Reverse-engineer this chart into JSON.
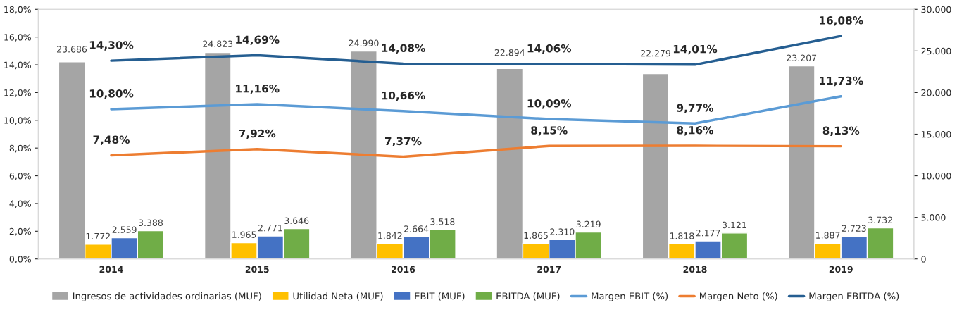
{
  "chart_data": {
    "type": "bar",
    "categories": [
      "2014",
      "2015",
      "2016",
      "2017",
      "2018",
      "2019"
    ],
    "series": [
      {
        "name": "Ingresos de actividades ordinarias (MUF)",
        "color": "#a5a5a5",
        "axis": "y2",
        "values": [
          23686,
          24823,
          24990,
          22894,
          22279,
          23207
        ],
        "value_labels": [
          "23.686",
          "24.823",
          "24.990",
          "22.894",
          "22.279",
          "23.207"
        ]
      },
      {
        "name": "Utilidad Neta (MUF)",
        "color": "#ffc000",
        "axis": "y2",
        "values": [
          1772,
          1965,
          1842,
          1865,
          1818,
          1887
        ],
        "value_labels": [
          "1.772",
          "1.965",
          "1.842",
          "1.865",
          "1.818",
          "1.887"
        ]
      },
      {
        "name": "EBIT (MUF)",
        "color": "#4472c4",
        "axis": "y2",
        "values": [
          2559,
          2771,
          2664,
          2310,
          2177,
          2723
        ],
        "value_labels": [
          "2.559",
          "2.771",
          "2.664",
          "2.310",
          "2.177",
          "2.723"
        ]
      },
      {
        "name": "EBITDA (MUF)",
        "color": "#70ad47",
        "axis": "y2",
        "values": [
          3388,
          3646,
          3518,
          3219,
          3121,
          3732
        ],
        "value_labels": [
          "3.388",
          "3.646",
          "3.518",
          "3.219",
          "3.121",
          "3.732"
        ]
      },
      {
        "name": "Margen EBIT (%)",
        "type": "line",
        "color": "#5b9bd5",
        "values": [
          10.8,
          11.16,
          10.66,
          10.09,
          9.77,
          11.73
        ],
        "value_labels": [
          "10,80%",
          "11,16%",
          "10,66%",
          "10,09%",
          "9,77%",
          "11,73%"
        ]
      },
      {
        "name": "Margen Neto (%)",
        "type": "line",
        "color": "#ed7d31",
        "values": [
          7.48,
          7.92,
          7.37,
          8.15,
          8.16,
          8.13
        ],
        "value_labels": [
          "7,48%",
          "7,92%",
          "7,37%",
          "8,15%",
          "8,16%",
          "8,13%"
        ]
      },
      {
        "name": "Margen EBITDA (%)",
        "type": "line",
        "color": "#255e91",
        "values": [
          14.3,
          14.69,
          14.08,
          14.06,
          14.01,
          16.08
        ],
        "value_labels": [
          "14,30%",
          "14,69%",
          "14,08%",
          "14,06%",
          "14,01%",
          "16,08%"
        ]
      }
    ],
    "ylim": [
      0,
      18
    ],
    "yticks": [
      {
        "value": 0,
        "label": "0,0%"
      },
      {
        "value": 2,
        "label": "2,0%"
      },
      {
        "value": 4,
        "label": "4,0%"
      },
      {
        "value": 6,
        "label": "6,0%"
      },
      {
        "value": 8,
        "label": "8,0%"
      },
      {
        "value": 10,
        "label": "10,0%"
      },
      {
        "value": 12,
        "label": "12,0%"
      },
      {
        "value": 14,
        "label": "14,0%"
      },
      {
        "value": 16,
        "label": "16,0%"
      },
      {
        "value": 18,
        "label": "18,0%"
      }
    ],
    "y2lim": [
      0,
      30000
    ],
    "y2ticks": [
      0,
      {
        "value": 5000,
        "label": "5.000"
      },
      {
        "value": 10000,
        "label": "10.000"
      },
      {
        "value": 15000,
        "label": "15.000"
      },
      {
        "value": 20000,
        "label": "20.000"
      },
      {
        "value": 25000,
        "label": "25.000"
      },
      {
        "value": 30000,
        "label": "30.000"
      }
    ],
    "grid": false,
    "legend": "bottom",
    "marker": "none",
    "line_style": "solid"
  }
}
